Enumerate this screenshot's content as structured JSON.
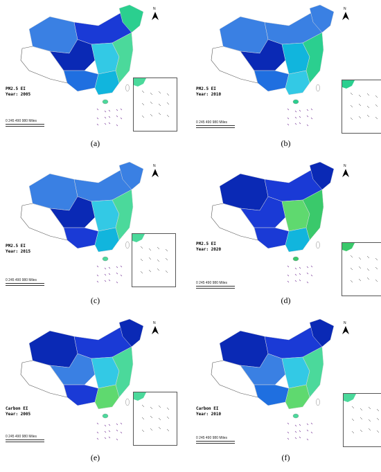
{
  "panels": [
    {
      "caption": "(a)",
      "legend_line1": "PM2.5 EI",
      "legend_line2": "Year: 2005",
      "colors": [
        "#3a80e3",
        "#1a3ad6",
        "#2bcf8f",
        "#0a29b5",
        "#33c9e5",
        "#4bd99b",
        "#1f6fe0",
        "#11b5dd"
      ]
    },
    {
      "caption": "(b)",
      "legend_line1": "PM2.5 EI",
      "legend_line2": "Year: 2010",
      "colors": [
        "#3a80e3",
        "#3a80e3",
        "#3a80e3",
        "#0a29b5",
        "#11b5dd",
        "#2bcf8f",
        "#1f6fe0",
        "#33c9e5"
      ]
    },
    {
      "caption": "(c)",
      "legend_line1": "PM2.5 EI",
      "legend_line2": "Year: 2015",
      "colors": [
        "#3a80e3",
        "#3a80e3",
        "#3a80e3",
        "#0a29b5",
        "#33c9e5",
        "#4bd99b",
        "#1a3ad6",
        "#11b5dd"
      ]
    },
    {
      "caption": "(d)",
      "legend_line1": "PM2.5 EI",
      "legend_line2": "Year: 2020",
      "colors": [
        "#0a29b5",
        "#1a3ad6",
        "#0a29b5",
        "#1a3ad6",
        "#5fd96f",
        "#3ac96b",
        "#1a3ad6",
        "#11b5dd"
      ]
    },
    {
      "caption": "(e)",
      "legend_line1": "Carbon EI",
      "legend_line2": "Year: 2005",
      "colors": [
        "#0a29b5",
        "#1a3ad6",
        "#0a29b5",
        "#3a80e3",
        "#33c9e5",
        "#4bd99b",
        "#1a3ad6",
        "#5fd96f"
      ]
    },
    {
      "caption": "(f)",
      "legend_line1": "Carbon EI",
      "legend_line2": "Year: 2010",
      "colors": [
        "#0a29b5",
        "#1a3ad6",
        "#0a29b5",
        "#3a80e3",
        "#33c9e5",
        "#4bd99b",
        "#1f6fe0",
        "#5fd96f"
      ]
    }
  ],
  "scale": {
    "ticks": "0   245  490       980 Miles"
  },
  "north_label": "N"
}
